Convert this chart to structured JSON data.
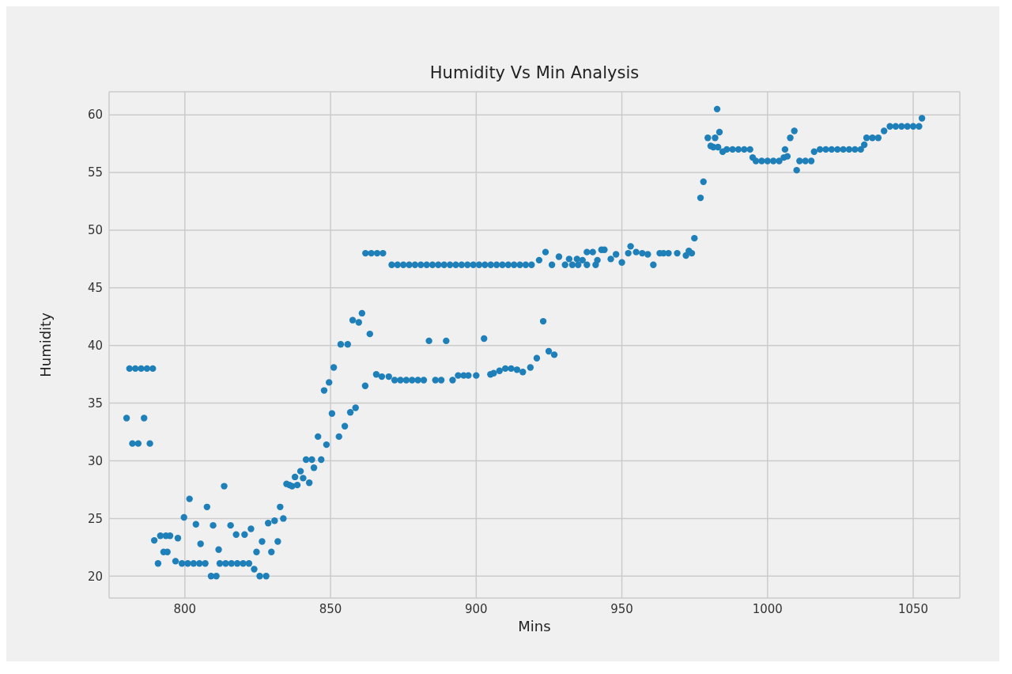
{
  "chart_data": {
    "type": "scatter",
    "title": "Humidity Vs Min Analysis",
    "xlabel": "Mins",
    "ylabel": "Humidity",
    "x": [
      780,
      781,
      783,
      785,
      787,
      789,
      782,
      784,
      786,
      788,
      789.5,
      790.8,
      791.6,
      792.7,
      793.5,
      794,
      794.9,
      796.8,
      797.6,
      799,
      799.7,
      801,
      803,
      805,
      807,
      801.6,
      803.8,
      805.4,
      807.6,
      809,
      810.8,
      809.7,
      811.6,
      813.5,
      812,
      814,
      816,
      818,
      820,
      822,
      815.7,
      817.6,
      820.5,
      822.7,
      823.8,
      824.6,
      825.7,
      827.9,
      826.5,
      828.6,
      829.7,
      830.8,
      831.9,
      832.7,
      833.8,
      834.9,
      835.9,
      836.8,
      837.8,
      838.6,
      839.7,
      840.6,
      841.6,
      843.6,
      842.7,
      844.3,
      845.7,
      846.8,
      847.8,
      848.6,
      849.5,
      850.5,
      851.1,
      852.9,
      854.9,
      853.5,
      855.9,
      856.8,
      858.6,
      857.6,
      859.7,
      860.8,
      861.9,
      863.5,
      862,
      864,
      866,
      868,
      865.7,
      867.6,
      870,
      872,
      874,
      876,
      878,
      880,
      882,
      883.8,
      886,
      888,
      889.7,
      891.9,
      893.8,
      895.7,
      897.3,
      900,
      902.7,
      904.9,
      906,
      908,
      910,
      912,
      914,
      916,
      918.6,
      920.8,
      923,
      924.9,
      926.8,
      871,
      873,
      875,
      877,
      879,
      881,
      883,
      885,
      887,
      889,
      891,
      893,
      895,
      897,
      899,
      901,
      903,
      905,
      907,
      909,
      911,
      913,
      915,
      917,
      919,
      921.6,
      923.8,
      926,
      928.4,
      930.5,
      933,
      935,
      938,
      941,
      931.9,
      934.6,
      936.5,
      938,
      940,
      941.6,
      943,
      944,
      946.2,
      948,
      950,
      952.2,
      953,
      954.9,
      957,
      958.9,
      960.8,
      963,
      964.3,
      966,
      969,
      972,
      973,
      974,
      974.9,
      977,
      978,
      979.5,
      980.5,
      982,
      983,
      983.5,
      982.7,
      981.4,
      984.6,
      986,
      988,
      990,
      992,
      994,
      994.9,
      996,
      998,
      1000,
      1002,
      1004,
      1005.6,
      1006,
      1006.8,
      1007.8,
      1009.2,
      1010,
      1011,
      1013,
      1015,
      1016,
      1018,
      1020,
      1022,
      1024,
      1026,
      1028,
      1030,
      1032,
      1033.2,
      1034,
      1036,
      1038,
      1040,
      1042,
      1044,
      1046,
      1048,
      1050,
      1052,
      1053
    ],
    "values": [
      33.7,
      38,
      38,
      38,
      38,
      38,
      31.5,
      31.5,
      33.7,
      31.5,
      23.1,
      21.1,
      23.5,
      22.1,
      23.5,
      22.1,
      23.5,
      21.3,
      23.3,
      21.1,
      25.1,
      21.1,
      21.1,
      21.1,
      21.1,
      26.7,
      24.5,
      22.8,
      26,
      20,
      20,
      24.4,
      22.3,
      27.8,
      21.1,
      21.1,
      21.1,
      21.1,
      21.1,
      21.1,
      24.4,
      23.6,
      23.6,
      24.1,
      20.6,
      22.1,
      20,
      20,
      23,
      24.6,
      22.1,
      24.8,
      23,
      26,
      25,
      28,
      27.9,
      27.8,
      28.6,
      27.9,
      29.1,
      28.5,
      30.1,
      30.1,
      28.1,
      29.4,
      32.1,
      30.1,
      36.1,
      31.4,
      36.8,
      34.1,
      38.1,
      32.1,
      33,
      40.1,
      40.1,
      34.2,
      34.6,
      42.2,
      42,
      42.8,
      36.5,
      41,
      48,
      48,
      48,
      48,
      37.5,
      37.3,
      37.3,
      37,
      37,
      37,
      37,
      37,
      37,
      40.4,
      37,
      37,
      40.4,
      37,
      37.4,
      37.4,
      37.4,
      37.4,
      40.6,
      37.5,
      37.6,
      37.8,
      38,
      38,
      37.9,
      37.7,
      38.1,
      38.9,
      42.1,
      39.5,
      39.2,
      47,
      47,
      47,
      47,
      47,
      47,
      47,
      47,
      47,
      47,
      47,
      47,
      47,
      47,
      47,
      47,
      47,
      47,
      47,
      47,
      47,
      47,
      47,
      47,
      47,
      47.4,
      48.1,
      47,
      47.7,
      47,
      47,
      47,
      47,
      47,
      47.5,
      47.5,
      47.4,
      48.1,
      48.1,
      47.4,
      48.3,
      48.3,
      47.5,
      47.9,
      47.2,
      48,
      48.6,
      48.1,
      48,
      47.9,
      47,
      48,
      48,
      48,
      48,
      47.8,
      48.2,
      48,
      49.3,
      52.8,
      54.2,
      58,
      57.3,
      58,
      57.2,
      58.5,
      60.5,
      57.2,
      56.8,
      57,
      57,
      57,
      57,
      57,
      56.3,
      56,
      56,
      56,
      56,
      56,
      56.3,
      57,
      56.4,
      58,
      58.6,
      55.2,
      56,
      56,
      56,
      56.8,
      57,
      57,
      57,
      57,
      57,
      57,
      57,
      57,
      57.4,
      58,
      58,
      58,
      58.6,
      59,
      59,
      59,
      59,
      59,
      59,
      59.7
    ],
    "color": "#1f80b9",
    "marker": "circle",
    "xlim": [
      774,
      1066
    ],
    "xticks": [
      800,
      850,
      900,
      950,
      1000,
      1050
    ],
    "ylim": [
      18.1,
      62
    ],
    "yticks": [
      20,
      25,
      30,
      35,
      40,
      45,
      50,
      55,
      60
    ],
    "grid": true
  }
}
